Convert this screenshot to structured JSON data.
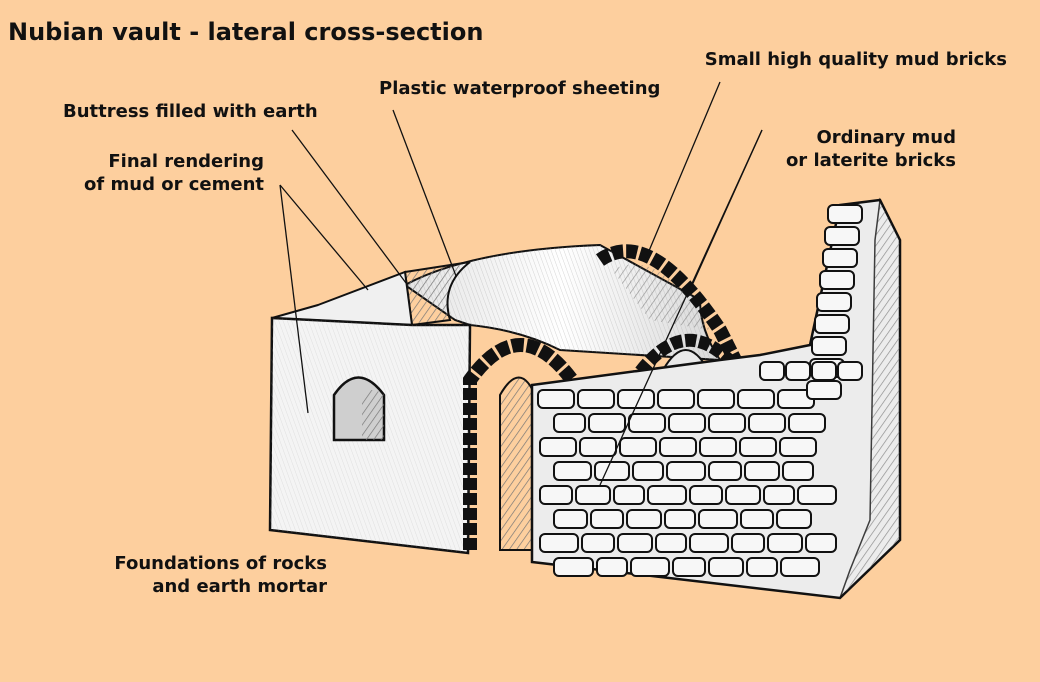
{
  "title": "Nubian vault - lateral cross-section",
  "labels": {
    "small_bricks": "Small high quality mud bricks",
    "sheeting": "Plastic waterproof sheeting",
    "buttress": "Buttress filled with earth",
    "rendering_line1": "Final rendering",
    "rendering_line2": "of mud or cement",
    "ordinary_line1": "Ordinary mud",
    "ordinary_line2": "or laterite bricks",
    "foundations_line1": "Foundations of rocks",
    "foundations_line2": "and earth mortar"
  },
  "colors": {
    "background": "#fdcf9e",
    "walls": "#f4f4f4",
    "outline": "#111111",
    "brick": "#f7f7f7"
  }
}
